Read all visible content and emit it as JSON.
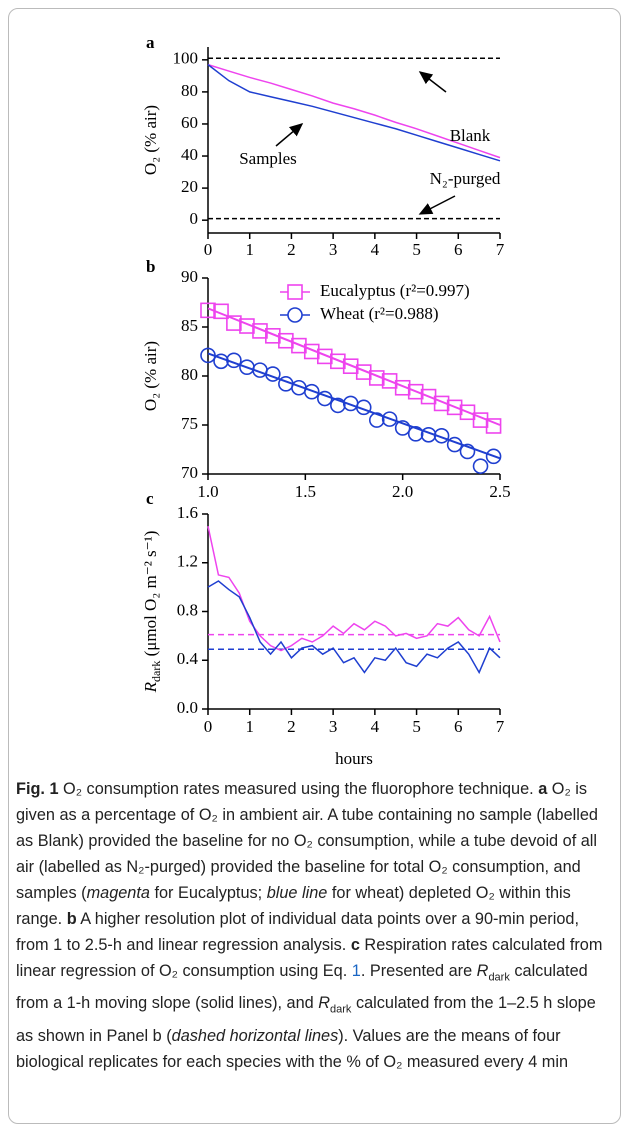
{
  "chart_data": [
    {
      "type": "line",
      "panel_label": "a",
      "y_label": "O₂ (% air)",
      "x": [
        0,
        0.5,
        1,
        1.5,
        2,
        2.5,
        3,
        3.5,
        4,
        4.5,
        5,
        5.5,
        6,
        6.5,
        7
      ],
      "series": [
        {
          "color": "#000000",
          "dashed": true,
          "values": [
            101,
            101,
            101,
            101,
            101,
            101,
            101,
            101,
            101,
            101,
            101,
            101,
            101,
            101,
            101
          ]
        },
        {
          "color": "#000000",
          "dashed": true,
          "values": [
            1,
            1,
            1,
            1,
            1,
            1,
            1,
            1,
            1,
            1,
            1,
            1,
            1,
            1,
            1
          ]
        },
        {
          "color": "#ee44ee",
          "dashed": false,
          "values": [
            97,
            93,
            89,
            85.5,
            81.5,
            77.5,
            73,
            69.5,
            65.5,
            61,
            57,
            52.5,
            48,
            43.5,
            39
          ]
        },
        {
          "color": "#1f3fd0",
          "dashed": false,
          "values": [
            97,
            87,
            80,
            77,
            74,
            71,
            67.5,
            64,
            60.5,
            57,
            53,
            49,
            45,
            41,
            37
          ]
        }
      ],
      "annotations": [
        "Blank",
        "Samples",
        "N₂-purged"
      ],
      "xlim": [
        0,
        7
      ],
      "xticks": [
        0,
        1,
        2,
        3,
        4,
        5,
        6,
        7
      ],
      "ylim": [
        -8,
        108
      ],
      "yticks": [
        0,
        20,
        40,
        60,
        80,
        100
      ]
    },
    {
      "type": "scatter",
      "panel_label": "b",
      "y_label": "O₂ (% air)",
      "x": [
        1.0,
        1.067,
        1.133,
        1.2,
        1.267,
        1.333,
        1.4,
        1.467,
        1.533,
        1.6,
        1.667,
        1.733,
        1.8,
        1.867,
        1.933,
        2.0,
        2.067,
        2.133,
        2.2,
        2.267,
        2.333,
        2.4,
        2.467
      ],
      "series": [
        {
          "name": "Eucalyptus (r²=0.997)",
          "color": "#ee44ee",
          "marker": "square",
          "values": [
            86.7,
            86.6,
            85.4,
            85.1,
            84.6,
            84.1,
            83.6,
            83.1,
            82.5,
            82.0,
            81.5,
            81.0,
            80.4,
            79.8,
            79.5,
            78.8,
            78.4,
            77.9,
            77.2,
            76.8,
            76.3,
            75.5,
            74.9
          ],
          "fit": {
            "x": [
              1.0,
              2.5
            ],
            "values": [
              86.9,
              75.0
            ]
          }
        },
        {
          "name": "Wheat (r²=0.988)",
          "color": "#1f3fd0",
          "marker": "circle",
          "values": [
            82.1,
            81.5,
            81.6,
            80.9,
            80.6,
            80.2,
            79.2,
            78.8,
            78.4,
            77.7,
            77.0,
            77.2,
            76.8,
            75.5,
            75.6,
            74.7,
            74.1,
            74.0,
            73.9,
            73.0,
            72.3,
            70.8,
            71.8
          ],
          "fit": {
            "x": [
              1.0,
              2.5
            ],
            "values": [
              82.3,
              71.6
            ]
          }
        }
      ],
      "xlim": [
        1.0,
        2.5
      ],
      "xticks": [
        {
          "value": 1.0,
          "label": "1.0"
        },
        1.5,
        {
          "value": 2.0,
          "label": "2.0"
        },
        2.5
      ],
      "ylim": [
        70,
        90
      ],
      "yticks": [
        70,
        75,
        80,
        85,
        90
      ]
    },
    {
      "type": "line",
      "panel_label": "c",
      "y_label": [
        "R",
        "dark",
        " (μmol O₂ m⁻² s⁻¹)"
      ],
      "x_label": "hours",
      "x": [
        0,
        0.25,
        0.5,
        0.75,
        1,
        1.25,
        1.5,
        1.75,
        2,
        2.25,
        2.5,
        2.75,
        3,
        3.25,
        3.5,
        3.75,
        4,
        4.25,
        4.5,
        4.75,
        5,
        5.25,
        5.5,
        5.75,
        6,
        6.25,
        6.5,
        6.75,
        7
      ],
      "series": [
        {
          "color": "#ee44ee",
          "dashed": false,
          "values": [
            1.5,
            1.1,
            1.08,
            0.95,
            0.72,
            0.6,
            0.52,
            0.48,
            0.52,
            0.58,
            0.55,
            0.6,
            0.68,
            0.62,
            0.7,
            0.65,
            0.72,
            0.68,
            0.6,
            0.62,
            0.58,
            0.6,
            0.7,
            0.68,
            0.75,
            0.65,
            0.6,
            0.76,
            0.55
          ]
        },
        {
          "color": "#1f3fd0",
          "dashed": false,
          "values": [
            1.0,
            1.05,
            0.98,
            0.92,
            0.75,
            0.55,
            0.45,
            0.55,
            0.42,
            0.5,
            0.52,
            0.45,
            0.5,
            0.38,
            0.42,
            0.3,
            0.42,
            0.4,
            0.5,
            0.38,
            0.35,
            0.45,
            0.42,
            0.5,
            0.55,
            0.45,
            0.3,
            0.5,
            0.42
          ]
        }
      ],
      "reference_lines": [
        {
          "color": "#ee44ee",
          "value": 0.61
        },
        {
          "color": "#1f3fd0",
          "value": 0.49
        }
      ],
      "xlim": [
        0,
        7
      ],
      "xticks": [
        0,
        1,
        2,
        3,
        4,
        5,
        6,
        7
      ],
      "ylim": [
        0,
        1.6
      ],
      "yticks": [
        {
          "value": 0,
          "label": "0.0"
        },
        0.4,
        0.8,
        1.2,
        1.6
      ]
    }
  ],
  "caption": {
    "segments": [
      "Fig. 1",
      "  O₂ consumption rates measured using the fluorophore technique. ",
      "a",
      " O₂ is given as a percentage of O₂ in ambient air. A tube containing no sample (labelled as Blank) provided the baseline for no O₂ consumption, while a tube devoid of all air (labelled as N₂-purged) provided the baseline for total O₂ consumption, and samples (",
      "magenta",
      " for Eucalyptus; ",
      "blue line",
      " for wheat) depleted O₂ within this range. ",
      "b",
      " A higher resolution plot of individual data points over a 90-min period, from 1 to 2.5-h and linear regression analysis. ",
      "c",
      " Respiration rates calculated from linear regression of O₂ consumption using Eq. ",
      "1",
      ". Presented are ",
      "R",
      "dark",
      " calculated from a 1-h moving slope (solid lines), and ",
      "R",
      "dark",
      " calculated from the 1–2.5 h slope as shown in Panel b (",
      "dashed horizontal lines",
      "). Values are the means of four biological replicates for each species with the % of O₂ measured every 4 min"
    ]
  }
}
